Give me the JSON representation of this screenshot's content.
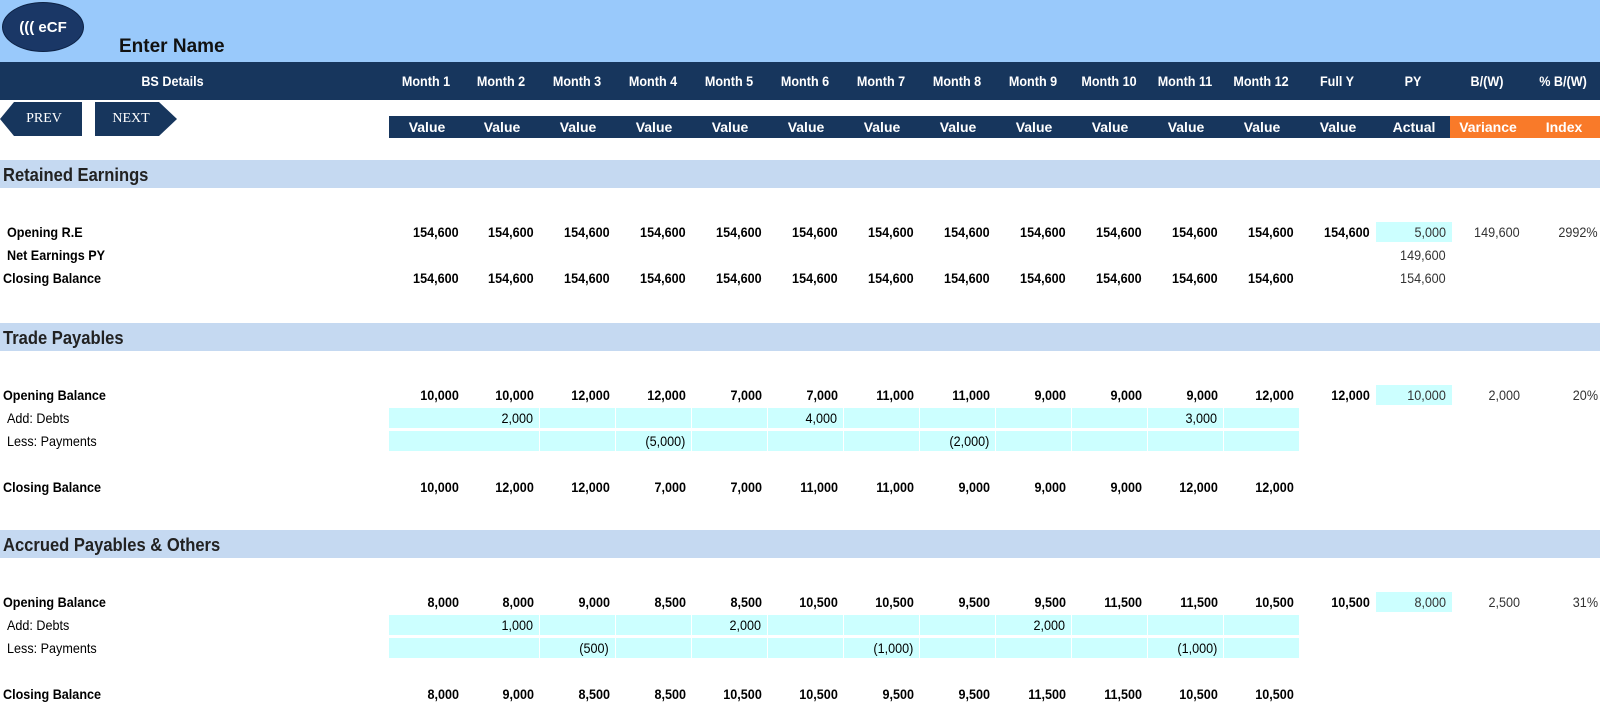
{
  "header": {
    "logo": "((( eCF",
    "enter_name": "Enter Name",
    "bs_details": "BS Details",
    "months": [
      "Month 1",
      "Month 2",
      "Month 3",
      "Month 4",
      "Month 5",
      "Month 6",
      "Month 7",
      "Month 8",
      "Month 9",
      "Month 10",
      "Month 11",
      "Month 12"
    ],
    "full_y": "Full Y",
    "py": "PY",
    "bw": "B/(W)",
    "pct_bw": "% B/(W)",
    "sub_value": "Value",
    "sub_actual": "Actual",
    "sub_variance": "Variance",
    "sub_index": "Index"
  },
  "nav": {
    "prev": "PREV",
    "next": "NEXT"
  },
  "sections": [
    {
      "title": "Retained Earnings",
      "rows": [
        {
          "label": "Opening R.E",
          "bold": true,
          "months": [
            "154,600",
            "154,600",
            "154,600",
            "154,600",
            "154,600",
            "154,600",
            "154,600",
            "154,600",
            "154,600",
            "154,600",
            "154,600",
            "154,600"
          ],
          "fully": "154,600",
          "py": "5,000",
          "bw": "149,600",
          "pct": "2992%"
        },
        {
          "label": "Net Earnings PY",
          "bold": true,
          "months": [
            "",
            "",
            "",
            "",
            "",
            "",
            "",
            "",
            "",
            "",
            "",
            ""
          ],
          "fully": "",
          "py": "149,600",
          "bw": "",
          "pct": ""
        },
        {
          "label": "Closing Balance",
          "bold": true,
          "months": [
            "154,600",
            "154,600",
            "154,600",
            "154,600",
            "154,600",
            "154,600",
            "154,600",
            "154,600",
            "154,600",
            "154,600",
            "154,600",
            "154,600"
          ],
          "fully": "",
          "py": "154,600",
          "bw": "",
          "pct": ""
        }
      ]
    },
    {
      "title": "Trade Payables",
      "rows": [
        {
          "label": "Opening Balance",
          "bold": true,
          "months": [
            "10,000",
            "10,000",
            "12,000",
            "12,000",
            "7,000",
            "7,000",
            "11,000",
            "11,000",
            "9,000",
            "9,000",
            "9,000",
            "12,000"
          ],
          "fully": "12,000",
          "py": "10,000",
          "bw": "2,000",
          "pct": "20%"
        },
        {
          "label": "Add: Debts",
          "bold": false,
          "months": [
            "",
            "2,000",
            "",
            "",
            "",
            "4,000",
            "",
            "",
            "",
            "",
            "3,000",
            ""
          ]
        },
        {
          "label": "Less: Payments",
          "bold": false,
          "months": [
            "",
            "",
            "",
            "(5,000)",
            "",
            "",
            "",
            "(2,000)",
            "",
            "",
            "",
            ""
          ]
        },
        {
          "label": "Closing Balance",
          "bold": true,
          "months": [
            "10,000",
            "12,000",
            "12,000",
            "7,000",
            "7,000",
            "11,000",
            "11,000",
            "9,000",
            "9,000",
            "9,000",
            "12,000",
            "12,000"
          ]
        }
      ]
    },
    {
      "title": "Accrued Payables & Others",
      "rows": [
        {
          "label": "Opening Balance",
          "bold": true,
          "months": [
            "8,000",
            "8,000",
            "9,000",
            "8,500",
            "8,500",
            "10,500",
            "10,500",
            "9,500",
            "9,500",
            "11,500",
            "11,500",
            "10,500"
          ],
          "fully": "10,500",
          "py": "8,000",
          "bw": "2,500",
          "pct": "31%"
        },
        {
          "label": "Add: Debts",
          "bold": false,
          "months": [
            "",
            "1,000",
            "",
            "",
            "2,000",
            "",
            "",
            "",
            "2,000",
            "",
            "",
            ""
          ]
        },
        {
          "label": "Less: Payments",
          "bold": false,
          "months": [
            "",
            "",
            "(500)",
            "",
            "",
            "",
            "(1,000)",
            "",
            "",
            "",
            "(1,000)",
            ""
          ]
        },
        {
          "label": "Closing Balance",
          "bold": true,
          "months": [
            "8,000",
            "9,000",
            "8,500",
            "8,500",
            "10,500",
            "10,500",
            "9,500",
            "9,500",
            "11,500",
            "11,500",
            "10,500",
            "10,500"
          ]
        }
      ]
    }
  ],
  "colors": {
    "navy": "#17365d",
    "top_band": "#99c9fb",
    "section": "#c5d9f1",
    "input": "#ccffff",
    "orange": "#f97a29"
  }
}
